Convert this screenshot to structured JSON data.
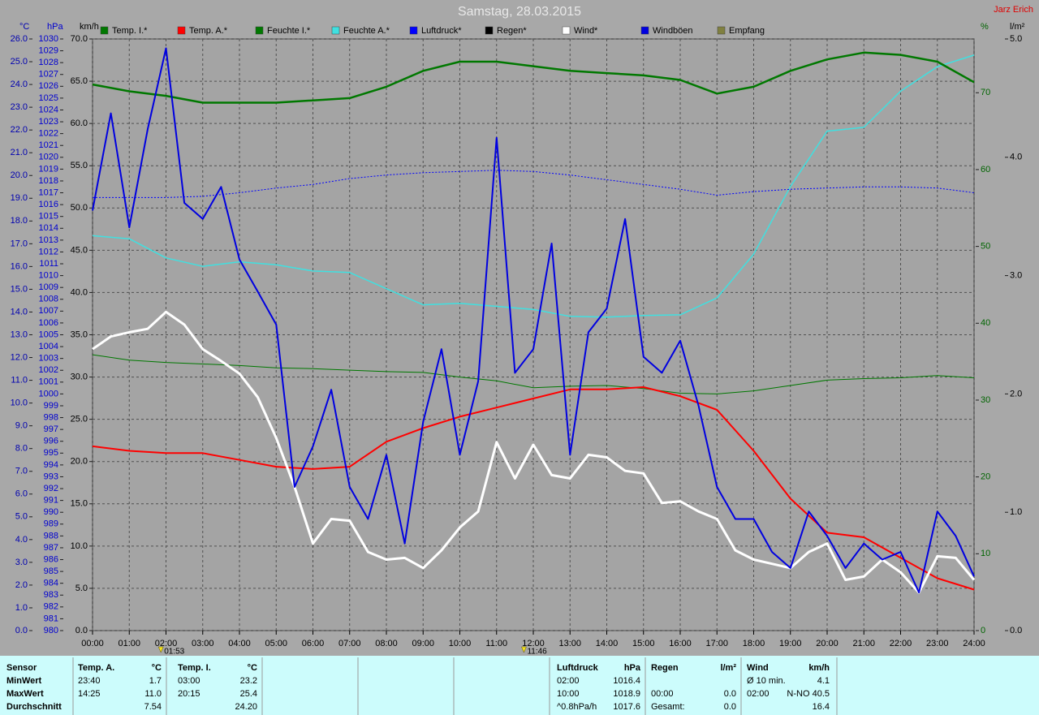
{
  "chart_data": {
    "type": "line",
    "title": "Samstag, 28.03.2015",
    "author": "Jarz Erich",
    "xlim": [
      0,
      24
    ],
    "xticks": [
      {
        "value": 0,
        "label": "00:00"
      },
      {
        "value": 1,
        "label": "01:00"
      },
      {
        "value": 2,
        "label": "02:00"
      },
      {
        "value": 3,
        "label": "03:00"
      },
      {
        "value": 4,
        "label": "04:00"
      },
      {
        "value": 5,
        "label": "05:00"
      },
      {
        "value": 6,
        "label": "06:00"
      },
      {
        "value": 7,
        "label": "07:00"
      },
      {
        "value": 8,
        "label": "08:00"
      },
      {
        "value": 9,
        "label": "09:00"
      },
      {
        "value": 10,
        "label": "10:00"
      },
      {
        "value": 11,
        "label": "11:00"
      },
      {
        "value": 12,
        "label": "12:00"
      },
      {
        "value": 13,
        "label": "13:00"
      },
      {
        "value": 14,
        "label": "14:00"
      },
      {
        "value": 15,
        "label": "15:00"
      },
      {
        "value": 16,
        "label": "16:00"
      },
      {
        "value": 17,
        "label": "17:00"
      },
      {
        "value": 18,
        "label": "18:00"
      },
      {
        "value": 19,
        "label": "19:00"
      },
      {
        "value": 20,
        "label": "20:00"
      },
      {
        "value": 21,
        "label": "21:00"
      },
      {
        "value": 22,
        "label": "22:00"
      },
      {
        "value": 23,
        "label": "23:00"
      },
      {
        "value": 24,
        "label": "24:00"
      }
    ],
    "grid": true,
    "axes": {
      "temp": {
        "label": "°C",
        "lim": [
          0,
          26
        ],
        "ticks": [
          {
            "value": 0,
            "label": "0.0"
          },
          {
            "value": 1,
            "label": "1.0"
          },
          {
            "value": 2,
            "label": "2.0"
          },
          {
            "value": 3,
            "label": "3.0"
          },
          {
            "value": 4,
            "label": "4.0"
          },
          {
            "value": 5,
            "label": "5.0"
          },
          {
            "value": 6,
            "label": "6.0"
          },
          {
            "value": 7,
            "label": "7.0"
          },
          {
            "value": 8,
            "label": "8.0"
          },
          {
            "value": 9,
            "label": "9.0"
          },
          {
            "value": 10,
            "label": "10.0"
          },
          {
            "value": 11,
            "label": "11.0"
          },
          {
            "value": 12,
            "label": "12.0"
          },
          {
            "value": 13,
            "label": "13.0"
          },
          {
            "value": 14,
            "label": "14.0"
          },
          {
            "value": 15,
            "label": "15.0"
          },
          {
            "value": 16,
            "label": "16.0"
          },
          {
            "value": 17,
            "label": "17.0"
          },
          {
            "value": 18,
            "label": "18.0"
          },
          {
            "value": 19,
            "label": "19.0"
          },
          {
            "value": 20,
            "label": "20.0"
          },
          {
            "value": 21,
            "label": "21.0"
          },
          {
            "value": 22,
            "label": "22.0"
          },
          {
            "value": 23,
            "label": "23.0"
          },
          {
            "value": 24,
            "label": "24.0"
          },
          {
            "value": 25,
            "label": "25.0"
          },
          {
            "value": 26,
            "label": "26.0"
          }
        ]
      },
      "press": {
        "label": "hPa",
        "lim": [
          980,
          1030
        ],
        "ticks": [
          980,
          981,
          982,
          983,
          984,
          985,
          986,
          987,
          988,
          989,
          990,
          991,
          992,
          993,
          994,
          995,
          996,
          997,
          998,
          999,
          1000,
          1001,
          1002,
          1003,
          1004,
          1005,
          1006,
          1007,
          1008,
          1009,
          1010,
          1011,
          1012,
          1013,
          1014,
          1015,
          1016,
          1017,
          1018,
          1019,
          1020,
          1021,
          1022,
          1023,
          1024,
          1025,
          1026,
          1027,
          1028,
          1029,
          1030
        ]
      },
      "speed": {
        "label": "km/h",
        "lim": [
          0,
          70
        ],
        "ticks": [
          {
            "value": 0,
            "label": "0.0"
          },
          {
            "value": 5,
            "label": "5.0"
          },
          {
            "value": 10,
            "label": "10.0"
          },
          {
            "value": 15,
            "label": "15.0"
          },
          {
            "value": 20,
            "label": "20.0"
          },
          {
            "value": 25,
            "label": "25.0"
          },
          {
            "value": 30,
            "label": "30.0"
          },
          {
            "value": 35,
            "label": "35.0"
          },
          {
            "value": 40,
            "label": "40.0"
          },
          {
            "value": 45,
            "label": "45.0"
          },
          {
            "value": 50,
            "label": "50.0"
          },
          {
            "value": 55,
            "label": "55.0"
          },
          {
            "value": 60,
            "label": "60.0"
          },
          {
            "value": 65,
            "label": "65.0"
          },
          {
            "value": 70,
            "label": "70.0"
          }
        ]
      },
      "hum": {
        "label": "%",
        "lim": [
          0,
          77
        ],
        "ticks": [
          0,
          10,
          20,
          30,
          40,
          50,
          60,
          70
        ]
      },
      "rain": {
        "label": "l/m²",
        "lim": [
          0,
          5
        ],
        "ticks": [
          {
            "value": 0,
            "label": "0.0"
          },
          {
            "value": 1,
            "label": "1.0"
          },
          {
            "value": 2,
            "label": "2.0"
          },
          {
            "value": 3,
            "label": "3.0"
          },
          {
            "value": 4,
            "label": "4.0"
          },
          {
            "value": 5,
            "label": "5.0"
          }
        ]
      }
    },
    "series": [
      {
        "name": "Temp. I.*",
        "color": "#007800",
        "axis": "temp",
        "x": [
          0,
          1,
          2,
          3,
          4,
          5,
          6,
          7,
          8,
          9,
          10,
          11,
          12,
          13,
          14,
          15,
          16,
          17,
          18,
          19,
          20,
          21,
          22,
          23,
          24
        ],
        "values": [
          24.0,
          23.7,
          23.5,
          23.2,
          23.2,
          23.2,
          23.3,
          23.4,
          23.9,
          24.6,
          25.0,
          25.0,
          24.8,
          24.6,
          24.5,
          24.4,
          24.2,
          23.6,
          23.9,
          24.6,
          25.1,
          25.4,
          25.3,
          25.0,
          24.1
        ]
      },
      {
        "name": "Temp. A.*",
        "color": "#ff0000",
        "axis": "temp",
        "x": [
          0,
          1,
          2,
          3,
          4,
          5,
          6,
          7,
          8,
          9,
          10,
          11,
          12,
          13,
          14,
          15,
          16,
          17,
          18,
          19,
          20,
          21,
          22,
          23,
          24
        ],
        "values": [
          8.1,
          7.9,
          7.8,
          7.8,
          7.5,
          7.2,
          7.1,
          7.2,
          8.3,
          8.9,
          9.4,
          9.8,
          10.2,
          10.6,
          10.6,
          10.7,
          10.3,
          9.7,
          7.9,
          5.8,
          4.3,
          4.1,
          3.2,
          2.3,
          1.8
        ]
      },
      {
        "name": "Feuchte I.*",
        "color": "#007800",
        "axis": "hum",
        "x": [
          0,
          1,
          2,
          3,
          4,
          5,
          6,
          7,
          8,
          9,
          10,
          11,
          12,
          13,
          14,
          15,
          16,
          17,
          18,
          19,
          20,
          21,
          22,
          23,
          24
        ],
        "values": [
          35.9,
          35.2,
          34.9,
          34.7,
          34.5,
          34.2,
          34.1,
          33.9,
          33.7,
          33.6,
          33.0,
          32.5,
          31.6,
          31.8,
          31.9,
          31.5,
          30.9,
          30.8,
          31.2,
          31.9,
          32.6,
          32.8,
          32.9,
          33.2,
          32.9
        ]
      },
      {
        "name": "Feuchte A.*",
        "color": "#40e0e0",
        "axis": "hum",
        "x": [
          0,
          1,
          2,
          3,
          4,
          5,
          6,
          7,
          8,
          9,
          10,
          11,
          12,
          13,
          14,
          15,
          16,
          17,
          18,
          19,
          20,
          21,
          22,
          23,
          24
        ],
        "values": [
          51.4,
          51.0,
          48.5,
          47.4,
          48.0,
          47.6,
          46.8,
          46.6,
          44.5,
          42.4,
          42.6,
          42.2,
          41.8,
          40.9,
          40.8,
          41.0,
          41.1,
          43.3,
          49.0,
          57.8,
          65.0,
          65.5,
          70.2,
          73.4,
          74.9
        ]
      },
      {
        "name": "Luftdruck*",
        "color": "#0000ff",
        "axis": "press",
        "x": [
          0,
          1,
          2,
          3,
          4,
          5,
          6,
          7,
          8,
          9,
          10,
          11,
          12,
          13,
          14,
          15,
          16,
          17,
          18,
          19,
          20,
          21,
          22,
          23,
          24
        ],
        "values": [
          1016.6,
          1016.6,
          1016.6,
          1016.7,
          1017.0,
          1017.4,
          1017.7,
          1018.2,
          1018.5,
          1018.7,
          1018.8,
          1018.9,
          1018.8,
          1018.5,
          1018.1,
          1017.7,
          1017.3,
          1016.8,
          1017.1,
          1017.3,
          1017.4,
          1017.5,
          1017.5,
          1017.4,
          1017.0
        ]
      },
      {
        "name": "Regen*",
        "color": "#000000",
        "axis": "rain",
        "x": [],
        "values": []
      },
      {
        "name": "Wind*",
        "color": "#ffffff",
        "axis": "speed",
        "x": [
          0,
          0.5,
          1,
          1.5,
          2,
          2.5,
          3,
          3.5,
          4,
          4.5,
          5,
          5.5,
          6,
          6.5,
          7,
          7.5,
          8,
          8.5,
          9,
          9.5,
          10,
          10.5,
          11,
          11.5,
          12,
          12.5,
          13,
          13.5,
          14,
          14.5,
          15,
          15.5,
          16,
          16.5,
          17,
          17.5,
          18,
          18.5,
          19,
          19.5,
          20,
          20.5,
          21,
          21.5,
          22,
          22.5,
          23,
          23.5,
          24
        ],
        "values": [
          33.3,
          34.8,
          35.3,
          35.7,
          37.7,
          36.2,
          33.3,
          31.9,
          30.4,
          27.6,
          22.8,
          17.0,
          10.3,
          13.2,
          13.0,
          9.3,
          8.4,
          8.6,
          7.4,
          9.5,
          12.2,
          14.1,
          22.3,
          18.0,
          22.0,
          18.4,
          18.0,
          20.8,
          20.5,
          18.9,
          18.6,
          15.1,
          15.3,
          14.1,
          13.2,
          9.5,
          8.4,
          7.9,
          7.4,
          9.3,
          10.3,
          6.0,
          6.4,
          8.4,
          6.9,
          4.5,
          8.8,
          8.6,
          6.0
        ]
      },
      {
        "name": "Windböen",
        "color": "#0000e0",
        "axis": "speed",
        "x": [
          0,
          0.5,
          1,
          1.5,
          2,
          2.5,
          3,
          3.5,
          4,
          4.5,
          5,
          5.5,
          6,
          6.5,
          7,
          7.5,
          8,
          8.5,
          9,
          9.5,
          10,
          10.5,
          11,
          11.5,
          12,
          12.5,
          13,
          13.5,
          14,
          14.5,
          15,
          15.5,
          16,
          16.5,
          17,
          17.5,
          18,
          18.5,
          19,
          19.5,
          20,
          20.5,
          21,
          21.5,
          22,
          22.5,
          23,
          23.5,
          24
        ],
        "values": [
          49.7,
          61.2,
          47.7,
          59.3,
          68.9,
          50.6,
          48.7,
          52.5,
          43.9,
          40.1,
          36.2,
          17.0,
          21.8,
          28.5,
          17.0,
          13.2,
          20.8,
          10.3,
          24.7,
          33.3,
          20.8,
          29.5,
          58.3,
          30.5,
          33.3,
          45.8,
          20.8,
          35.3,
          38.1,
          48.7,
          32.4,
          30.5,
          34.3,
          26.6,
          17.0,
          13.2,
          13.2,
          9.3,
          7.4,
          14.1,
          11.2,
          7.4,
          10.3,
          8.4,
          9.3,
          4.5,
          14.1,
          11.2,
          6.4
        ]
      },
      {
        "name": "Empfang",
        "color": "#808040",
        "axis": "rain",
        "x": [],
        "values": []
      }
    ],
    "annotations": [
      {
        "value": 1.8833,
        "label": "01:53"
      },
      {
        "value": 11.7667,
        "label": "11:46"
      }
    ]
  },
  "table": {
    "row_labels": [
      "Sensor",
      "MinWert",
      "MaxWert",
      "Durchschnitt"
    ],
    "panels": [
      {
        "header": [
          "Temp. A.",
          "°C"
        ],
        "rows": [
          [
            "23:40",
            "1.7"
          ],
          [
            "14:25",
            "11.0"
          ],
          [
            "7.54"
          ]
        ]
      },
      {
        "header": [
          "Temp. I.",
          "°C"
        ],
        "rows": [
          [
            "03:00",
            "23.2"
          ],
          [
            "20:15",
            "25.4"
          ],
          [
            "24.20"
          ]
        ]
      },
      {
        "header": [
          "Luftdruck",
          "hPa"
        ],
        "rows": [
          [
            "02:00",
            "1016.4"
          ],
          [
            "10:00",
            "1018.9"
          ],
          [
            "^0.8hPa/h",
            "1017.6"
          ]
        ]
      },
      {
        "header": [
          "Regen",
          "l/m²"
        ],
        "rows": [
          null,
          [
            "00:00",
            "0.0"
          ],
          [
            "Gesamt:",
            "0.0"
          ]
        ]
      },
      {
        "header": [
          "Wind",
          "km/h"
        ],
        "rows": [
          [
            "Ø 10 min.",
            "4.1"
          ],
          [
            "02:00",
            "N-NO 40.5"
          ],
          [
            "16.4"
          ]
        ]
      }
    ]
  }
}
